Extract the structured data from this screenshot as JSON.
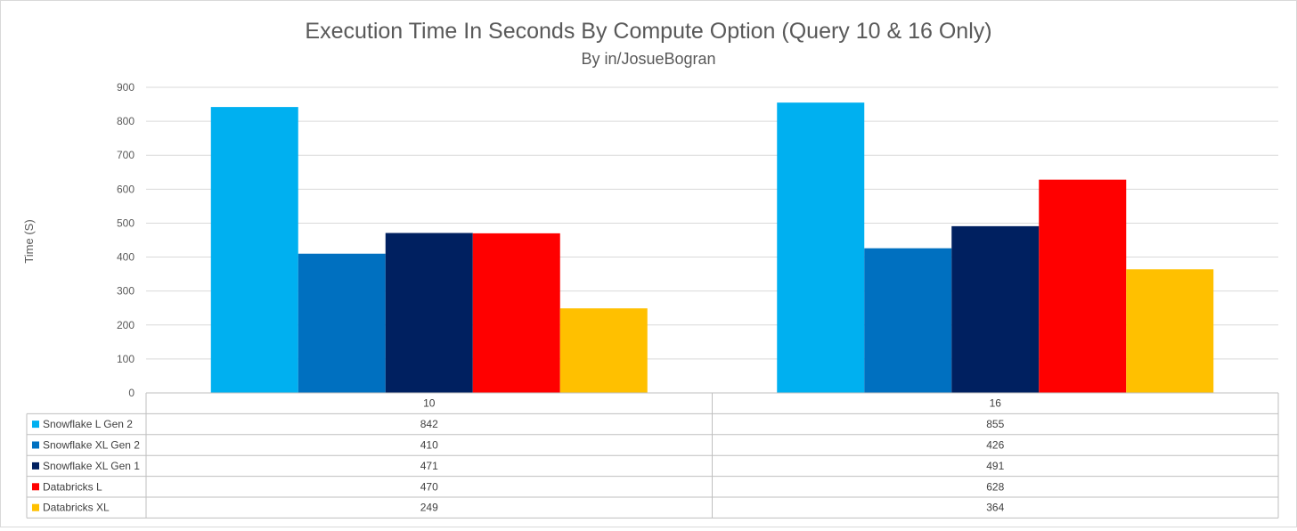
{
  "chart_data": {
    "type": "bar",
    "title": "Execution Time In Seconds By Compute Option (Query 10 & 16 Only)",
    "subtitle": "By in/JosueBogran",
    "xlabel": "",
    "ylabel": "Time (S)",
    "ylim": [
      0,
      900
    ],
    "yticks": [
      0,
      100,
      200,
      300,
      400,
      500,
      600,
      700,
      800,
      900
    ],
    "grid": true,
    "legend": "data-table",
    "categories": [
      "10",
      "16"
    ],
    "series": [
      {
        "name": "Snowflake L Gen 2",
        "color": "#00b0f0",
        "values": [
          842,
          855
        ]
      },
      {
        "name": "Snowflake XL Gen 2",
        "color": "#0070c0",
        "values": [
          410,
          426
        ]
      },
      {
        "name": "Snowflake XL Gen 1",
        "color": "#002060",
        "values": [
          471,
          491
        ]
      },
      {
        "name": "Databricks L",
        "color": "#ff0000",
        "values": [
          470,
          628
        ]
      },
      {
        "name": "Databricks XL",
        "color": "#ffc000",
        "values": [
          249,
          364
        ]
      }
    ]
  }
}
